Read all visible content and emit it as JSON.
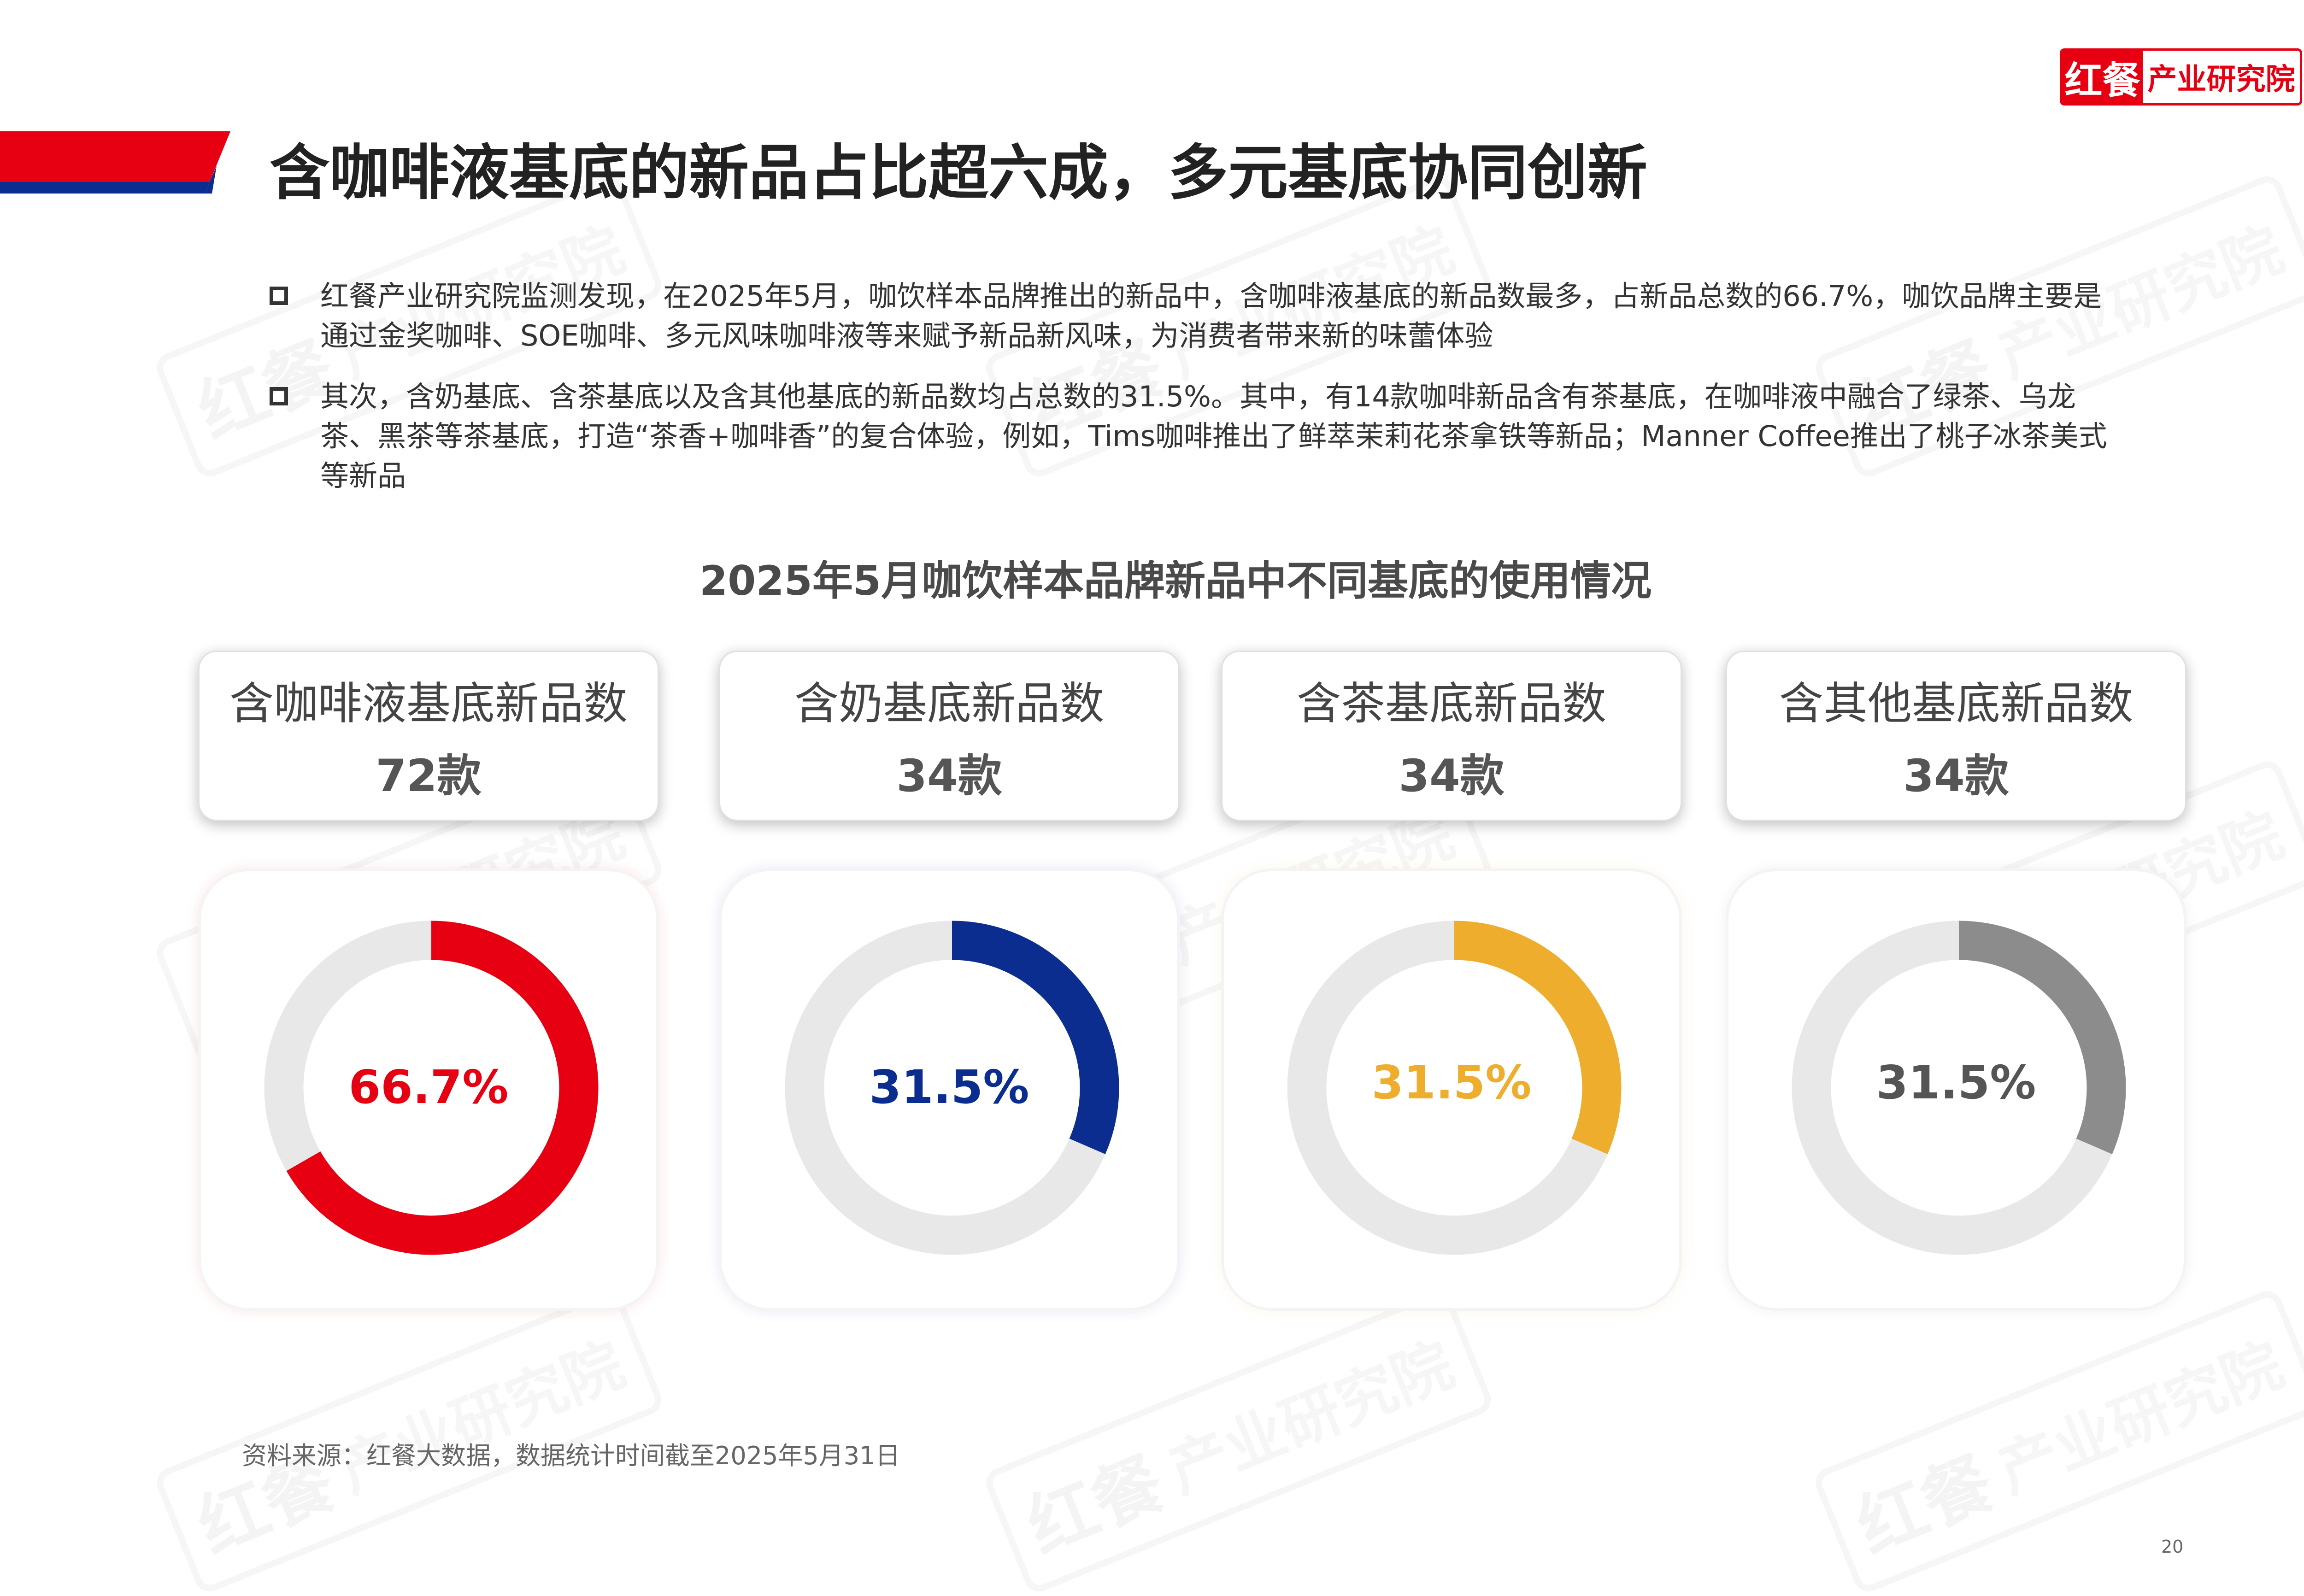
{
  "brand": {
    "mark": "红餐",
    "name": "产业研究院"
  },
  "title": "含咖啡液基底的新品占比超六成，多元基底协同创新",
  "bullets": [
    "红餐产业研究院监测发现，在2025年5月，咖饮样本品牌推出的新品中，含咖啡液基底的新品数最多，占新品总数的66.7%，咖饮品牌主要是通过金奖咖啡、SOE咖啡、多元风味咖啡液等来赋予新品新风味，为消费者带来新的味蕾体验",
    "其次，含奶基底、含茶基底以及含其他基底的新品数均占总数的31.5%。其中，有14款咖啡新品含有茶基底，在咖啡液中融合了绿茶、乌龙茶、黑茶等茶基底，打造“茶香+咖啡香”的复合体验，例如，Tims咖啡推出了鲜萃茉莉花茶拿铁等新品；Manner Coffee推出了桃子冰茶美式等新品"
  ],
  "chart_data": {
    "type": "pie",
    "title": "2025年5月咖饮样本品牌新品中不同基底的使用情况",
    "series": [
      {
        "name": "含咖啡液基底新品数",
        "count_label": "72款",
        "count": 72,
        "percent": 66.7,
        "percent_label": "66.7%",
        "color": "#e60012"
      },
      {
        "name": "含奶基底新品数",
        "count_label": "34款",
        "count": 34,
        "percent": 31.5,
        "percent_label": "31.5%",
        "color": "#0a2d8f"
      },
      {
        "name": "含茶基底新品数",
        "count_label": "34款",
        "count": 34,
        "percent": 31.5,
        "percent_label": "31.5%",
        "color": "#eead2c"
      },
      {
        "name": "含其他基底新品数",
        "count_label": "34款",
        "count": 34,
        "percent": 31.5,
        "percent_label": "31.5%",
        "color": "#8c8c8c"
      }
    ],
    "track_color": "#e8e8e8"
  },
  "source": "资料来源：红餐大数据，数据统计时间截至2025年5月31日",
  "page_number": "20"
}
